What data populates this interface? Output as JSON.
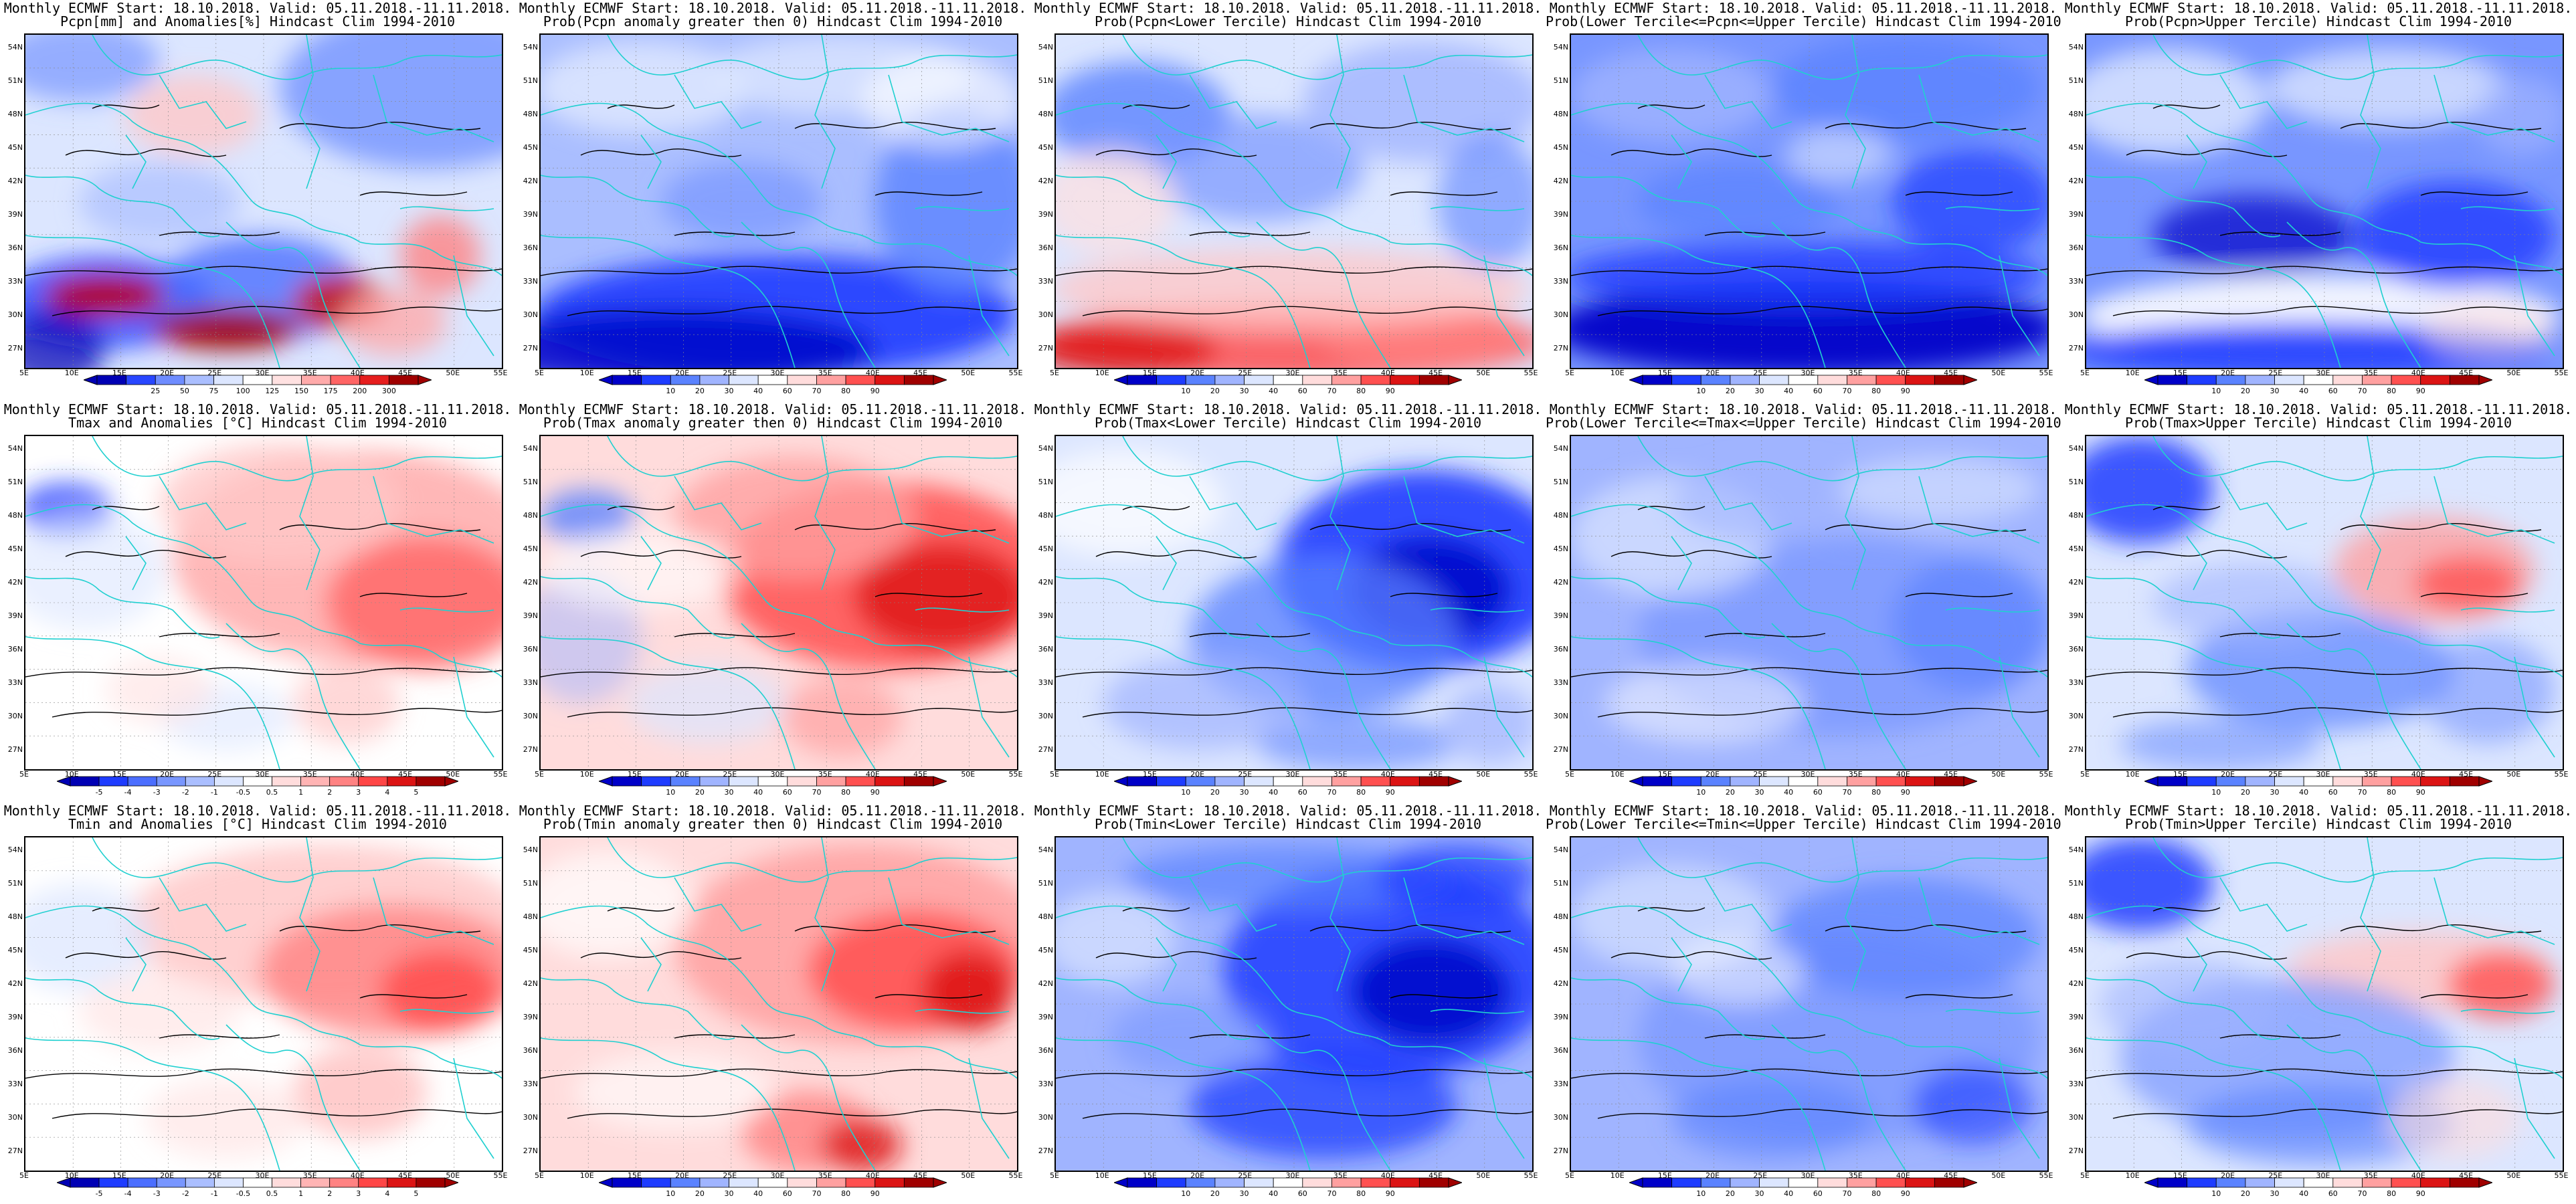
{
  "panels": [
    {
      "title1": "Monthly ECMWF Start: 18.10.2018. Valid: 05.11.2018.-11.11.2018.",
      "title2": "Pcpn[mm] and Anomalies[%] Hindcast Clim 1994-2010",
      "scale": "anom_pcpn",
      "field": "pcpn_anom"
    },
    {
      "title1": "Monthly ECMWF Start: 18.10.2018. Valid: 05.11.2018.-11.11.2018.",
      "title2": "Prob(Pcpn anomaly greater then 0) Hindcast Clim 1994-2010",
      "scale": "prob",
      "field": "pcpn_gt0"
    },
    {
      "title1": "Monthly ECMWF Start: 18.10.2018. Valid: 05.11.2018.-11.11.2018.",
      "title2": "Prob(Pcpn<Lower Tercile) Hindcast Clim 1994-2010",
      "scale": "prob",
      "field": "pcpn_lower"
    },
    {
      "title1": "Monthly ECMWF Start: 18.10.2018. Valid: 05.11.2018.-11.11.2018.",
      "title2": "Prob(Lower Tercile<=Pcpn<=Upper Tercile) Hindcast Clim 1994-2010",
      "scale": "prob",
      "field": "pcpn_middle"
    },
    {
      "title1": "Monthly ECMWF Start: 18.10.2018. Valid: 05.11.2018.-11.11.2018.",
      "title2": "Prob(Pcpn>Upper Tercile) Hindcast Clim 1994-2010",
      "scale": "prob",
      "field": "pcpn_upper"
    },
    {
      "title1": "Monthly ECMWF Start: 18.10.2018. Valid: 05.11.2018.-11.11.2018.",
      "title2": "Tmax and Anomalies [°C] Hindcast Clim 1994-2010",
      "scale": "anom_temp",
      "field": "tmax_anom"
    },
    {
      "title1": "Monthly ECMWF Start: 18.10.2018. Valid: 05.11.2018.-11.11.2018.",
      "title2": "Prob(Tmax anomaly greater then 0) Hindcast Clim 1994-2010",
      "scale": "prob",
      "field": "tmax_gt0"
    },
    {
      "title1": "Monthly ECMWF Start: 18.10.2018. Valid: 05.11.2018.-11.11.2018.",
      "title2": "Prob(Tmax<Lower Tercile) Hindcast Clim 1994-2010",
      "scale": "prob",
      "field": "tmax_lower"
    },
    {
      "title1": "Monthly ECMWF Start: 18.10.2018. Valid: 05.11.2018.-11.11.2018.",
      "title2": "Prob(Lower Tercile<=Tmax<=Upper Tercile) Hindcast Clim 1994-2010",
      "scale": "prob",
      "field": "tmax_middle"
    },
    {
      "title1": "Monthly ECMWF Start: 18.10.2018. Valid: 05.11.2018.-11.11.2018.",
      "title2": "Prob(Tmax>Upper Tercile) Hindcast Clim 1994-2010",
      "scale": "prob",
      "field": "tmax_upper"
    },
    {
      "title1": "Monthly ECMWF Start: 18.10.2018. Valid: 05.11.2018.-11.11.2018.",
      "title2": "Tmin and Anomalies [°C] Hindcast Clim 1994-2010",
      "scale": "anom_temp",
      "field": "tmin_anom"
    },
    {
      "title1": "Monthly ECMWF Start: 18.10.2018. Valid: 05.11.2018.-11.11.2018.",
      "title2": "Prob(Tmin anomaly greater then 0) Hindcast Clim 1994-2010",
      "scale": "prob",
      "field": "tmin_gt0"
    },
    {
      "title1": "Monthly ECMWF Start: 18.10.2018. Valid: 05.11.2018.-11.11.2018.",
      "title2": "Prob(Tmin<Lower Tercile) Hindcast Clim 1994-2010",
      "scale": "prob",
      "field": "tmin_lower"
    },
    {
      "title1": "Monthly ECMWF Start: 18.10.2018. Valid: 05.11.2018.-11.11.2018.",
      "title2": "Prob(Lower Tercile<=Tmin<=Upper Tercile) Hindcast Clim 1994-2010",
      "scale": "prob",
      "field": "tmin_middle"
    },
    {
      "title1": "Monthly ECMWF Start: 18.10.2018. Valid: 05.11.2018.-11.11.2018.",
      "title2": "Prob(Tmin>Upper Tercile) Hindcast Clim 1994-2010",
      "scale": "prob",
      "field": "tmin_upper"
    }
  ],
  "axes": {
    "lat_labels": [
      "54N",
      "51N",
      "48N",
      "45N",
      "42N",
      "39N",
      "36N",
      "33N",
      "30N",
      "27N"
    ],
    "lon_labels": [
      "5E",
      "10E",
      "15E",
      "20E",
      "25E",
      "30E",
      "35E",
      "40E",
      "45E",
      "50E",
      "55E"
    ]
  },
  "colorbars": {
    "prob": {
      "labels": [
        "10",
        "20",
        "30",
        "40",
        "60",
        "70",
        "80",
        "90"
      ],
      "colors": [
        "#0000c8",
        "#1e3cff",
        "#5a82ff",
        "#a0b4ff",
        "#dce6ff",
        "#ffffff",
        "#ffdcdc",
        "#ffa0a0",
        "#ff5050",
        "#dc1414",
        "#a00000"
      ]
    },
    "anom_pcpn": {
      "labels": [
        "25",
        "50",
        "75",
        "100",
        "125",
        "150",
        "175",
        "200",
        "300"
      ],
      "colors": [
        "#0000b4",
        "#2846ff",
        "#6e8cff",
        "#aabeff",
        "#dce6ff",
        "#ffffff",
        "#ffe1e1",
        "#ffaaaa",
        "#ff6464",
        "#e61e1e",
        "#a00000"
      ]
    },
    "anom_temp": {
      "labels": [
        "-5",
        "-4",
        "-3",
        "-2",
        "-1",
        "-0.5",
        "0.5",
        "1",
        "2",
        "3",
        "4",
        "5"
      ],
      "colors": [
        "#0000b4",
        "#1e3cff",
        "#4b6eff",
        "#7896ff",
        "#aabeff",
        "#dce6ff",
        "#ffffff",
        "#ffdcdc",
        "#ffb4b4",
        "#ff8282",
        "#ff4646",
        "#dc1414",
        "#a00000"
      ]
    }
  },
  "colors": {
    "coast": "#20d0d0",
    "contour": "#000000",
    "frame": "#000000"
  }
}
